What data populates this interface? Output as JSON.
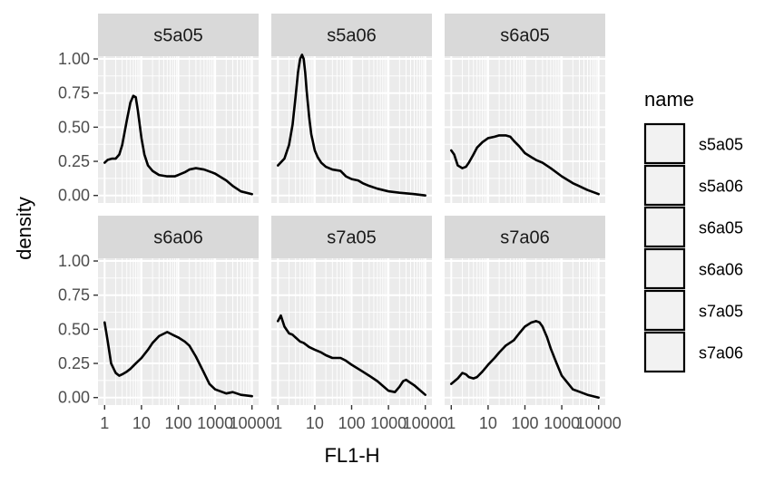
{
  "chart_data": {
    "type": "line",
    "plot_kind": "density (faceted small multiples)",
    "xlabel": "FL1-H",
    "ylabel": "density",
    "x_scale": "log10",
    "xlim": [
      1,
      10000
    ],
    "ylim": [
      0,
      1.0
    ],
    "x_ticks": [
      1,
      10,
      100,
      1000,
      10000
    ],
    "x_tick_labels": [
      "1",
      "10",
      "100",
      "1000",
      "10000"
    ],
    "y_ticks": [
      0,
      0.25,
      0.5,
      0.75,
      1.0
    ],
    "y_tick_labels": [
      "0.00",
      "0.25",
      "0.50",
      "0.75",
      "1.00"
    ],
    "grid": true,
    "legend": {
      "title": "name",
      "placement": "right",
      "entries": [
        "s5a05",
        "s5a06",
        "s6a05",
        "s6a06",
        "s7a05",
        "s7a06"
      ]
    },
    "colors": {
      "panel_bg": "#ebebeb",
      "strip_bg": "#d9d9d9",
      "grid": "#ffffff",
      "line": "#000000",
      "legend_key_bg": "#f2f2f2"
    },
    "facets": [
      {
        "name": "s5a05",
        "x": [
          1,
          1.2,
          1.6,
          2,
          2.5,
          3,
          4,
          5,
          6,
          7,
          8,
          10,
          12,
          15,
          20,
          30,
          50,
          80,
          100,
          150,
          200,
          300,
          500,
          800,
          1000,
          2000,
          3000,
          5000,
          10000
        ],
        "y": [
          0.24,
          0.26,
          0.27,
          0.27,
          0.3,
          0.37,
          0.55,
          0.68,
          0.73,
          0.72,
          0.62,
          0.42,
          0.3,
          0.22,
          0.18,
          0.15,
          0.14,
          0.14,
          0.15,
          0.17,
          0.19,
          0.2,
          0.19,
          0.17,
          0.16,
          0.11,
          0.07,
          0.03,
          0.01
        ]
      },
      {
        "name": "s5a06",
        "x": [
          1,
          1.5,
          2,
          2.5,
          3,
          3.5,
          4,
          4.5,
          5,
          5.5,
          6,
          7,
          8,
          10,
          12,
          15,
          20,
          30,
          50,
          70,
          100,
          150,
          200,
          300,
          500,
          1000,
          2000,
          5000,
          10000
        ],
        "y": [
          0.22,
          0.27,
          0.37,
          0.52,
          0.72,
          0.9,
          1.0,
          1.03,
          1.0,
          0.9,
          0.77,
          0.58,
          0.45,
          0.33,
          0.28,
          0.24,
          0.21,
          0.19,
          0.18,
          0.14,
          0.12,
          0.11,
          0.09,
          0.07,
          0.05,
          0.03,
          0.02,
          0.01,
          0.0
        ]
      },
      {
        "name": "s6a05",
        "x": [
          1,
          1.2,
          1.5,
          2,
          2.5,
          3,
          4,
          5,
          7,
          10,
          15,
          20,
          30,
          40,
          50,
          70,
          100,
          150,
          200,
          300,
          500,
          1000,
          2000,
          5000,
          10000
        ],
        "y": [
          0.33,
          0.3,
          0.22,
          0.2,
          0.21,
          0.24,
          0.3,
          0.35,
          0.39,
          0.42,
          0.43,
          0.44,
          0.44,
          0.43,
          0.4,
          0.36,
          0.31,
          0.28,
          0.26,
          0.24,
          0.2,
          0.14,
          0.09,
          0.04,
          0.01
        ]
      },
      {
        "name": "s6a06",
        "x": [
          1,
          1.2,
          1.5,
          2,
          2.5,
          3,
          4,
          5,
          7,
          10,
          15,
          20,
          30,
          50,
          70,
          100,
          150,
          200,
          300,
          500,
          700,
          1000,
          2000,
          3000,
          5000,
          10000
        ],
        "y": [
          0.55,
          0.42,
          0.25,
          0.18,
          0.16,
          0.17,
          0.19,
          0.21,
          0.25,
          0.29,
          0.35,
          0.4,
          0.45,
          0.48,
          0.46,
          0.44,
          0.41,
          0.38,
          0.3,
          0.18,
          0.1,
          0.06,
          0.03,
          0.04,
          0.02,
          0.01
        ]
      },
      {
        "name": "s7a05",
        "x": [
          1,
          1.2,
          1.5,
          2,
          2.5,
          3,
          4,
          5,
          7,
          10,
          15,
          20,
          30,
          50,
          70,
          100,
          200,
          300,
          500,
          1000,
          1500,
          2000,
          2500,
          3000,
          5000,
          10000
        ],
        "y": [
          0.56,
          0.6,
          0.52,
          0.47,
          0.46,
          0.44,
          0.41,
          0.4,
          0.37,
          0.35,
          0.33,
          0.31,
          0.29,
          0.29,
          0.27,
          0.24,
          0.19,
          0.16,
          0.12,
          0.05,
          0.04,
          0.08,
          0.12,
          0.13,
          0.09,
          0.02
        ]
      },
      {
        "name": "s7a06",
        "x": [
          1,
          1.5,
          2,
          2.5,
          3,
          4,
          5,
          7,
          10,
          15,
          20,
          30,
          50,
          70,
          100,
          150,
          200,
          250,
          300,
          400,
          500,
          700,
          1000,
          2000,
          5000,
          10000
        ],
        "y": [
          0.1,
          0.14,
          0.18,
          0.17,
          0.15,
          0.14,
          0.15,
          0.19,
          0.24,
          0.29,
          0.33,
          0.38,
          0.42,
          0.47,
          0.52,
          0.55,
          0.56,
          0.55,
          0.52,
          0.44,
          0.36,
          0.26,
          0.16,
          0.06,
          0.02,
          0.0
        ]
      }
    ]
  }
}
